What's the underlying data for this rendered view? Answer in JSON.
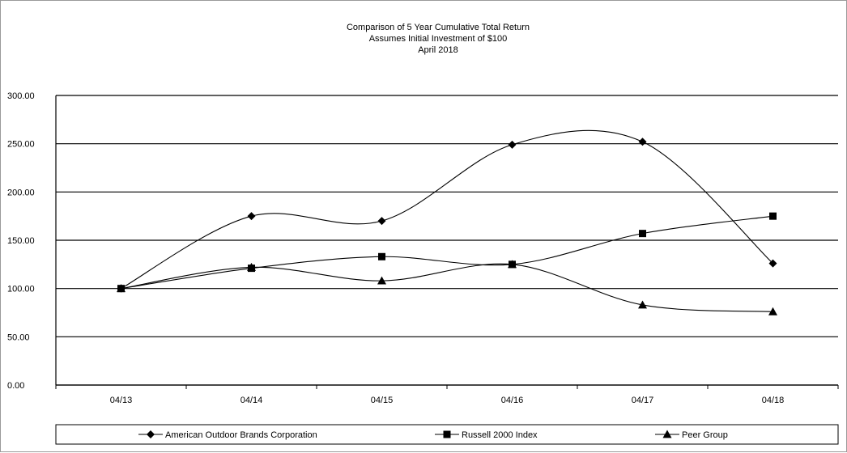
{
  "chart_data": {
    "type": "line",
    "title": [
      "Comparison  of 5  Year Cumulative  Total Return",
      "Assumes Initial Investment  of $100",
      "April 2018"
    ],
    "categories": [
      "04/13",
      "04/14",
      "04/15",
      "04/16",
      "04/17",
      "04/18"
    ],
    "yticks": [
      "0.00",
      "50.00",
      "100.00",
      "150.00",
      "200.00",
      "250.00",
      "300.00"
    ],
    "ylim": [
      0,
      300
    ],
    "grid": true,
    "legend_position": "bottom",
    "series": [
      {
        "name": "American Outdoor Brands Corporation",
        "marker": "diamond",
        "values": [
          100,
          175,
          170,
          249,
          252,
          126
        ]
      },
      {
        "name": "Russell 2000 Index",
        "marker": "square",
        "values": [
          100,
          121,
          133,
          125,
          157,
          175
        ]
      },
      {
        "name": "Peer Group",
        "marker": "triangle",
        "values": [
          100,
          122,
          108,
          125,
          83,
          76
        ]
      }
    ],
    "colors": {
      "line": "#000000",
      "grid": "#000000",
      "frame": "#9a9a9a"
    }
  }
}
